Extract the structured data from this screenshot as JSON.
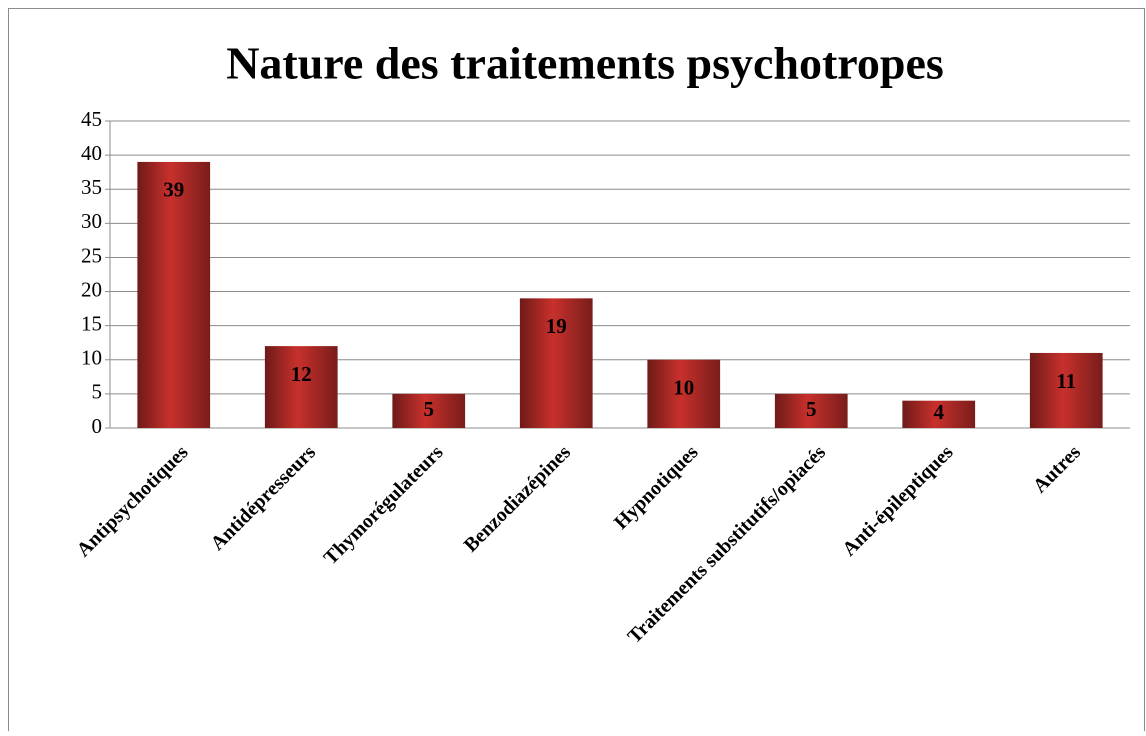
{
  "chart_data": {
    "type": "bar",
    "title": "Nature des traitements psychotropes",
    "categories": [
      "Antipsychotiques",
      "Antidépresseurs",
      "Thymorégulateurs",
      "Benzodiazépines",
      "Hypnotiques",
      "Traitements substitutifs/opiacés",
      "Anti-épileptiques",
      "Autres"
    ],
    "values": [
      39,
      12,
      5,
      19,
      10,
      5,
      4,
      11
    ],
    "color": "#c8302c",
    "ylim": [
      0,
      45
    ],
    "yticks": [
      0,
      5,
      10,
      15,
      20,
      25,
      30,
      35,
      40,
      45
    ],
    "grid": true
  }
}
